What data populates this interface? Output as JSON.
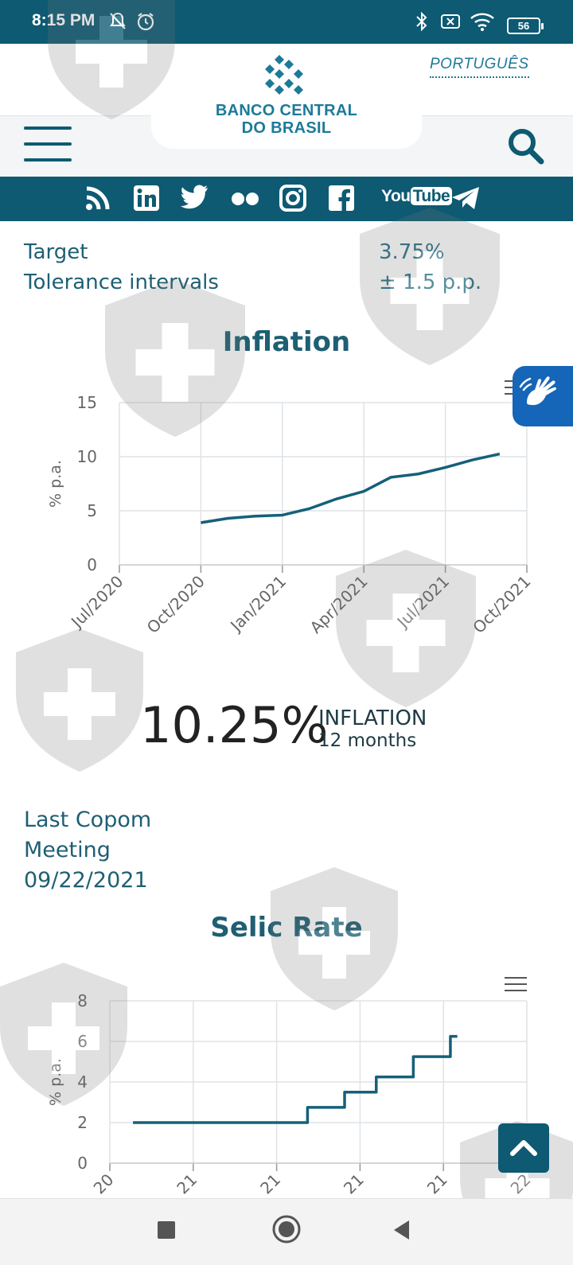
{
  "status_bar": {
    "time": "8:15 PM",
    "battery": "56"
  },
  "header": {
    "logo_line1": "BANCO CENTRAL",
    "logo_line2": "DO BRASIL",
    "language_link": "PORTUGUÊS"
  },
  "social": {
    "youtube_you": "You",
    "youtube_tube": "Tube",
    "icons": [
      "rss-icon",
      "linkedin-icon",
      "twitter-icon",
      "flickr-icon",
      "instagram-icon",
      "facebook-icon",
      "youtube-icon",
      "telegram-icon"
    ]
  },
  "targets": {
    "target_label": "Target",
    "target_value": "3.75%",
    "tolerance_label": "Tolerance intervals",
    "tolerance_value": "± 1.5 p.p."
  },
  "inflation_summary": {
    "value": "10.25%",
    "label": "INFLATION",
    "period": "12 months"
  },
  "copom": {
    "line1": "Last Copom",
    "line2": "Meeting",
    "date": "09/22/2021"
  },
  "colors": {
    "primary": "#0d5a72",
    "accent": "#1d7a99",
    "line": "#15607a",
    "grid": "#dfe3e6"
  },
  "chart_data": [
    {
      "type": "line",
      "title": "Inflation",
      "ylabel": "% p.a.",
      "xlabel": "",
      "ylim": [
        0,
        15
      ],
      "yticks": [
        "0",
        "5",
        "10",
        "15"
      ],
      "xticks": [
        "Jul/2020",
        "Oct/2020",
        "Jan/2021",
        "Apr/2021",
        "Jul/2021",
        "Oct/2021"
      ],
      "series": [
        {
          "x": [
            "2020-10",
            "2020-11",
            "2020-12",
            "2021-01",
            "2021-02",
            "2021-03",
            "2021-04",
            "2021-05",
            "2021-06",
            "2021-07",
            "2021-08",
            "2021-09"
          ],
          "values": [
            3.9,
            4.3,
            4.5,
            4.6,
            5.2,
            6.1,
            6.8,
            8.1,
            8.4,
            9.0,
            9.7,
            10.25
          ]
        }
      ],
      "grid": true
    },
    {
      "type": "line",
      "title": "Selic Rate",
      "ylabel": "% p.a.",
      "xlabel": "",
      "ylim": [
        0,
        8
      ],
      "yticks": [
        "0",
        "2",
        "4",
        "6",
        "8"
      ],
      "xticks": [
        "20",
        "21",
        "21",
        "21",
        "21",
        "22"
      ],
      "series": [
        {
          "x": [
            "2020-08",
            "2021-03-17",
            "2021-05-05",
            "2021-06-16",
            "2021-08-04",
            "2021-09-22",
            "2021-10"
          ],
          "values": [
            2.0,
            2.75,
            3.5,
            4.25,
            5.25,
            6.25,
            6.25
          ]
        }
      ],
      "grid": true
    }
  ]
}
